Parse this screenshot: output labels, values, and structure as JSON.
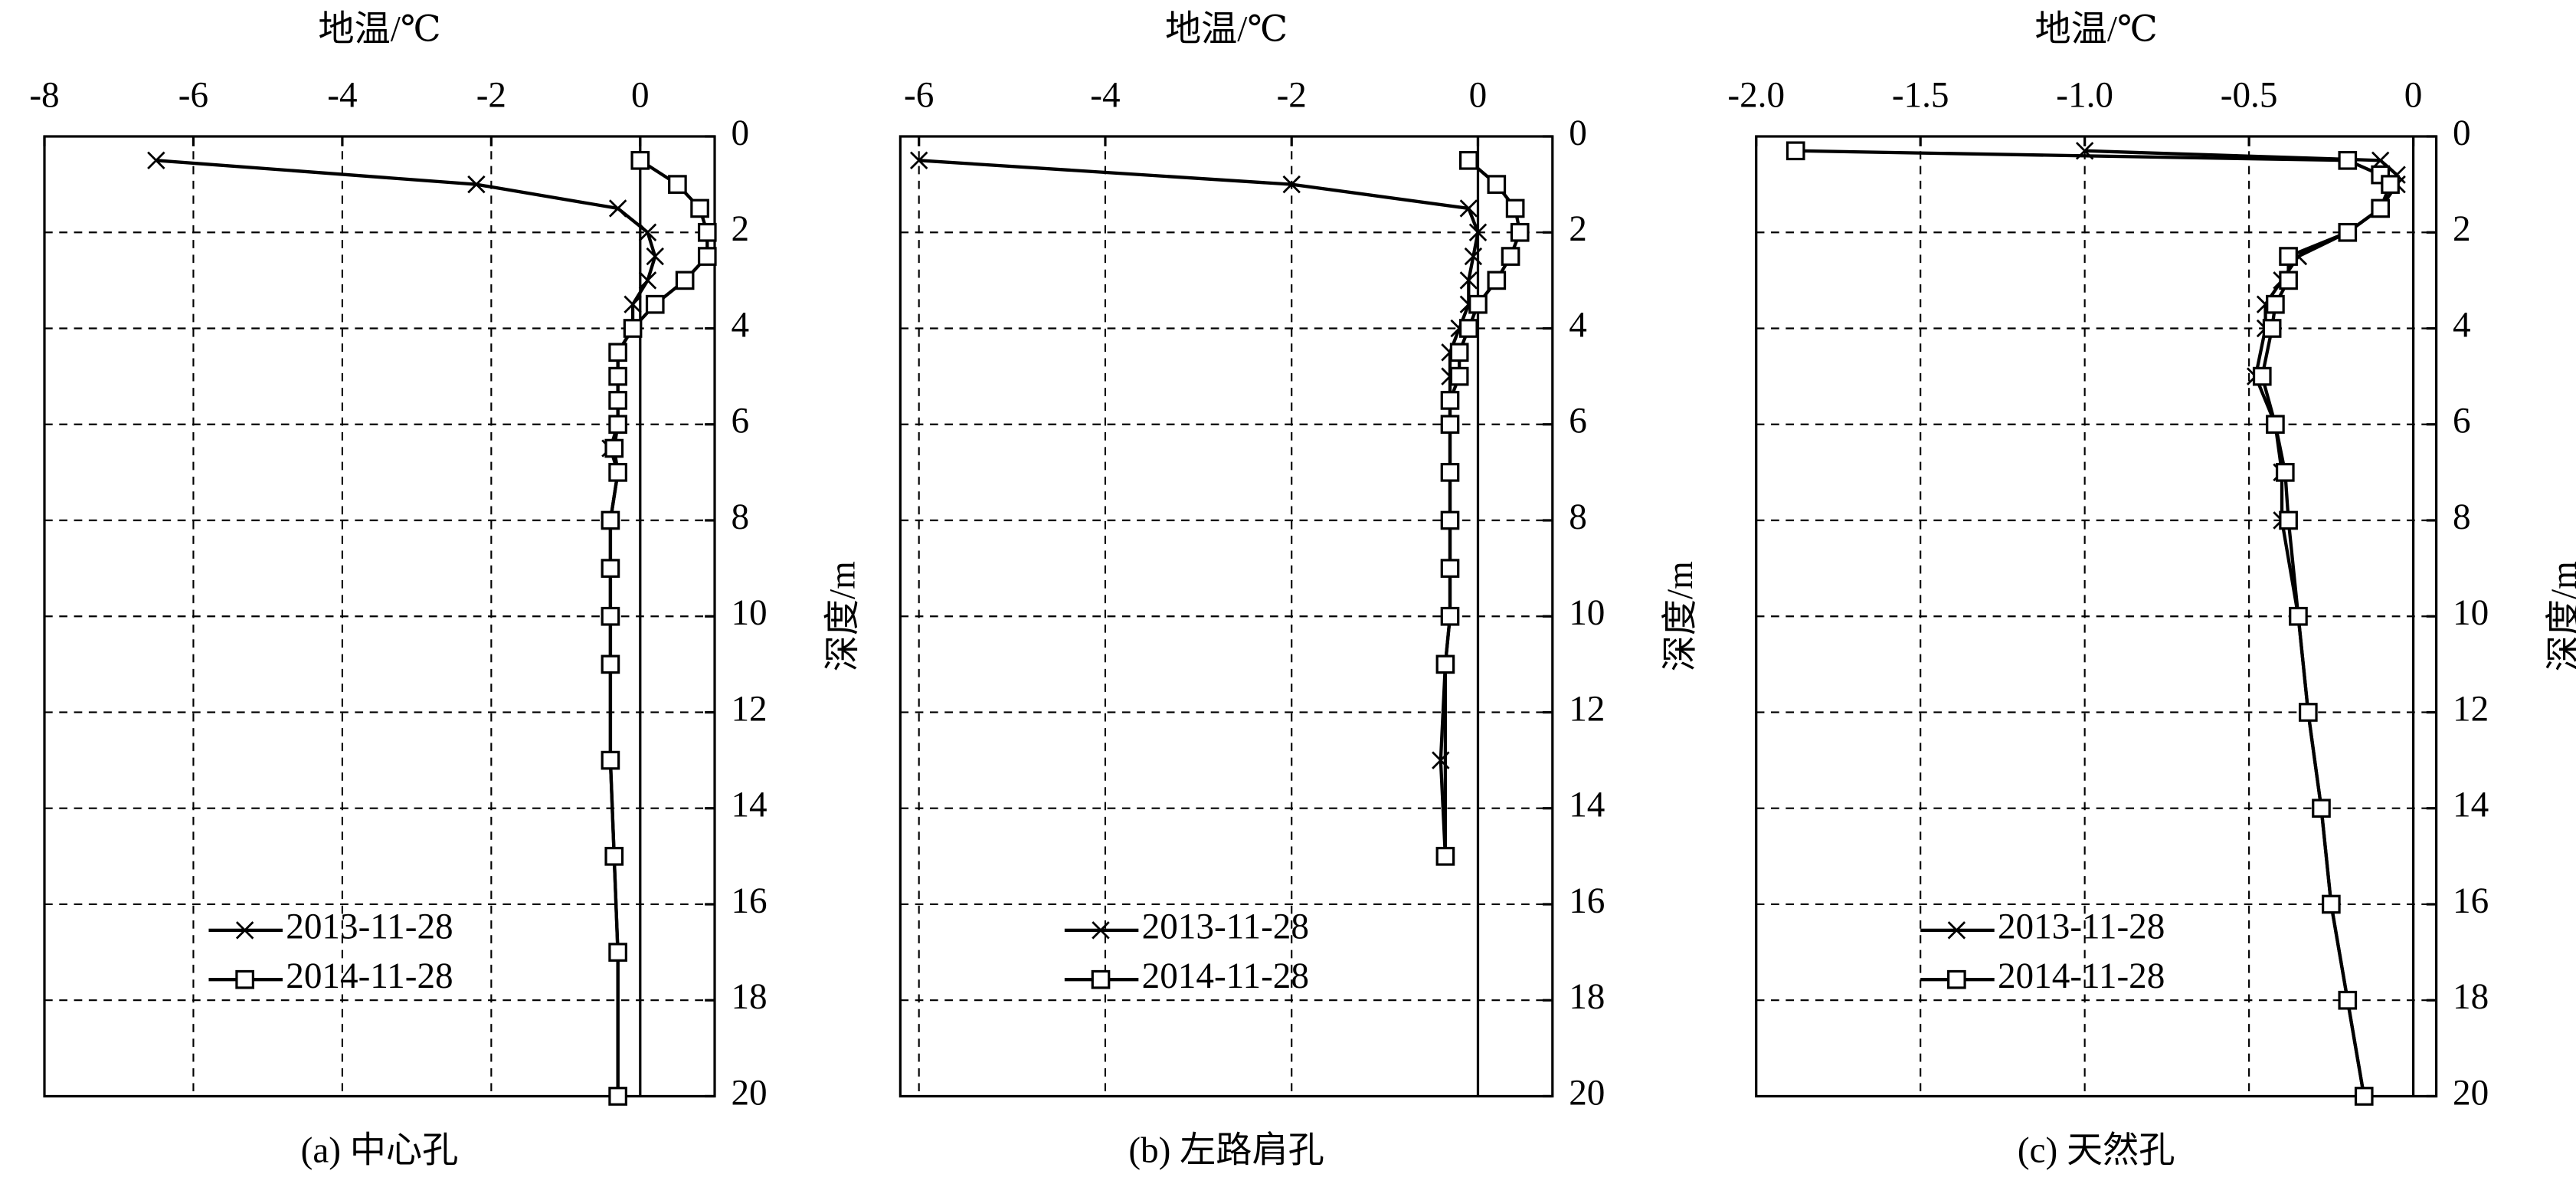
{
  "chart_data": [
    {
      "type": "line",
      "xlabel": "地温/℃",
      "ylabel": "深度/m",
      "caption": "(a) 中心孔",
      "xlim": [
        -8,
        1
      ],
      "xticks": [
        -8,
        -6,
        -4,
        -2,
        0
      ],
      "ylim": [
        0,
        20
      ],
      "yticks": [
        0,
        2,
        4,
        6,
        8,
        10,
        12,
        14,
        16,
        18,
        20
      ],
      "grid": true,
      "series": [
        {
          "name": "2013-11-28",
          "color": "#000000",
          "marker": "x",
          "x": [
            -6.5,
            -2.2,
            -0.3,
            0.1,
            0.2,
            0.1,
            -0.1,
            -0.1,
            -0.3,
            -0.3,
            -0.3,
            -0.3,
            -0.4,
            -0.3,
            -0.4,
            -0.4,
            -0.4,
            -0.4,
            -0.4,
            -0.35,
            -0.3,
            -0.3
          ],
          "y": [
            0.5,
            1,
            1.5,
            2,
            2.5,
            3,
            3.5,
            4,
            4.5,
            5,
            5.5,
            6,
            6.5,
            7,
            8,
            9,
            10,
            11,
            13,
            15,
            17,
            20
          ]
        },
        {
          "name": "2014-11-28",
          "color": "#000000",
          "marker": "square",
          "x": [
            0,
            0.5,
            0.8,
            0.9,
            0.9,
            0.6,
            0.2,
            -0.1,
            -0.3,
            -0.3,
            -0.3,
            -0.3,
            -0.35,
            -0.3,
            -0.4,
            -0.4,
            -0.4,
            -0.4,
            -0.4,
            -0.35,
            -0.3,
            -0.3
          ],
          "y": [
            0.5,
            1,
            1.5,
            2,
            2.5,
            3,
            3.5,
            4,
            4.5,
            5,
            5.5,
            6,
            6.5,
            7,
            8,
            9,
            10,
            11,
            13,
            15,
            17,
            20
          ]
        }
      ]
    },
    {
      "type": "line",
      "xlabel": "地温/℃",
      "ylabel": "深度/m",
      "caption": "(b) 左路肩孔",
      "xlim": [
        -6.2,
        0.8
      ],
      "xticks": [
        -6,
        -4,
        -2,
        0
      ],
      "ylim": [
        0,
        20
      ],
      "yticks": [
        0,
        2,
        4,
        6,
        8,
        10,
        12,
        14,
        16,
        18,
        20
      ],
      "grid": true,
      "series": [
        {
          "name": "2013-11-28",
          "color": "#000000",
          "marker": "x",
          "x": [
            -6,
            -2,
            -0.1,
            0,
            -0.05,
            -0.1,
            -0.1,
            -0.2,
            -0.3,
            -0.3,
            -0.3,
            -0.3,
            -0.3,
            -0.3,
            -0.3,
            -0.3,
            -0.35,
            -0.4,
            -0.35
          ],
          "y": [
            0.5,
            1,
            1.5,
            2,
            2.5,
            3,
            3.5,
            4,
            4.5,
            5,
            5.5,
            6,
            7,
            8,
            9,
            10,
            11,
            13,
            15
          ]
        },
        {
          "name": "2014-11-28",
          "color": "#000000",
          "marker": "square",
          "x": [
            -0.1,
            0.2,
            0.4,
            0.45,
            0.35,
            0.2,
            0,
            -0.1,
            -0.2,
            -0.2,
            -0.3,
            -0.3,
            -0.3,
            -0.3,
            -0.3,
            -0.3,
            -0.35,
            -0.35
          ],
          "y": [
            0.5,
            1,
            1.5,
            2,
            2.5,
            3,
            3.5,
            4,
            4.5,
            5,
            5.5,
            6,
            7,
            8,
            9,
            10,
            11,
            15
          ]
        }
      ]
    },
    {
      "type": "line",
      "xlabel": "地温/℃",
      "ylabel": "深度/m",
      "caption": "(c) 天然孔",
      "xlim": [
        -2.0,
        0.07
      ],
      "xticks": [
        {
          "value": -2,
          "label": "-2.0"
        },
        {
          "value": -1.5,
          "label": "-1.5"
        },
        {
          "value": -1,
          "label": "-1.0"
        },
        {
          "value": -0.5,
          "label": "-0.5"
        },
        0
      ],
      "ylim": [
        0,
        20
      ],
      "yticks": [
        0,
        2,
        4,
        6,
        8,
        10,
        12,
        14,
        16,
        18,
        20
      ],
      "grid": true,
      "series": [
        {
          "name": "2013-11-28",
          "color": "#000000",
          "marker": "x",
          "x": [
            -1.0,
            -0.1,
            -0.05,
            -0.05,
            -0.1,
            -0.2,
            -0.35,
            -0.4,
            -0.45,
            -0.45,
            -0.48,
            -0.42,
            -0.4,
            -0.4,
            -0.35,
            -0.32,
            -0.28,
            -0.25,
            -0.2,
            -0.15
          ],
          "y": [
            0.3,
            0.5,
            0.8,
            1,
            1.5,
            2,
            2.5,
            3,
            3.5,
            4,
            5,
            6,
            7,
            8,
            10,
            12,
            14,
            16,
            18,
            20
          ]
        },
        {
          "name": "2014-11-28",
          "color": "#000000",
          "marker": "square",
          "x": [
            -1.88,
            -0.2,
            -0.1,
            -0.07,
            -0.1,
            -0.2,
            -0.38,
            -0.38,
            -0.42,
            -0.43,
            -0.46,
            -0.42,
            -0.39,
            -0.38,
            -0.35,
            -0.32,
            -0.28,
            -0.25,
            -0.2,
            -0.15
          ],
          "y": [
            0.3,
            0.5,
            0.8,
            1,
            1.5,
            2,
            2.5,
            3,
            3.5,
            4,
            5,
            6,
            7,
            8,
            10,
            12,
            14,
            16,
            18,
            20
          ]
        }
      ]
    }
  ]
}
